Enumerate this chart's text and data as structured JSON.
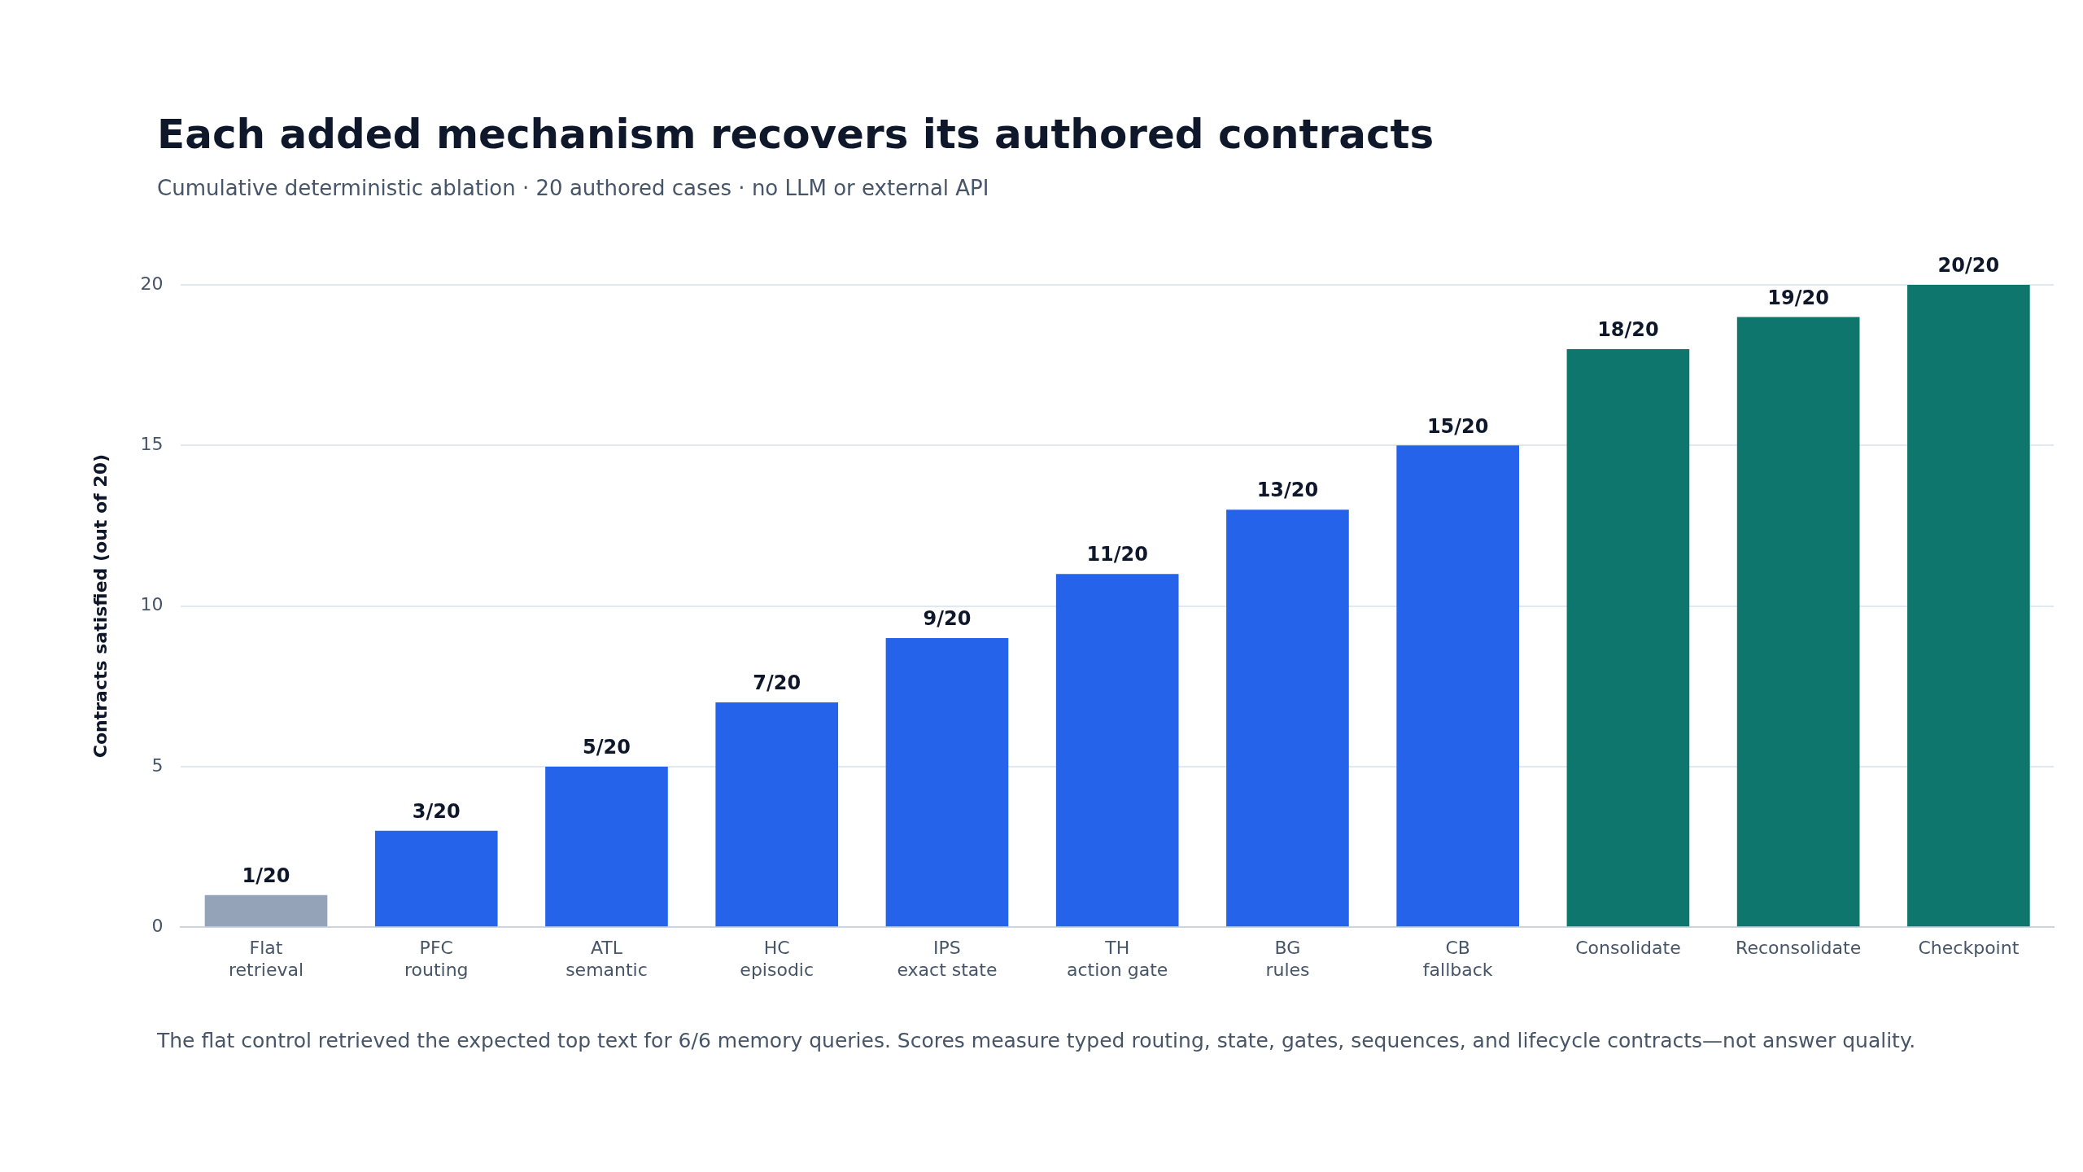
{
  "chart_data": {
    "type": "bar",
    "title": "Each added mechanism recovers its authored contracts",
    "subtitle": "Cumulative deterministic ablation · 20 authored cases · no LLM or external API",
    "ylabel": "Contracts satisfied (out of 20)",
    "categories": [
      "Flat\nretrieval",
      "PFC\nrouting",
      "ATL\nsemantic",
      "HC\nepisodic",
      "IPS\nexact state",
      "TH\naction gate",
      "BG\nrules",
      "CB\nfallback",
      "Consolidate",
      "Reconsolidate",
      "Checkpoint"
    ],
    "values": [
      1,
      3,
      5,
      7,
      9,
      11,
      13,
      15,
      18,
      19,
      20
    ],
    "colors": [
      "#94a3b8",
      "#2563eb",
      "#2563eb",
      "#2563eb",
      "#2563eb",
      "#2563eb",
      "#2563eb",
      "#2563eb",
      "#0f766e",
      "#0f766e",
      "#0f766e"
    ],
    "value_labels": [
      "1/20",
      "3/20",
      "5/20",
      "7/20",
      "9/20",
      "11/20",
      "13/20",
      "15/20",
      "18/20",
      "19/20",
      "20/20"
    ],
    "ylim": [
      0,
      20
    ],
    "yticks": [
      0,
      5,
      10,
      15,
      20
    ],
    "grid": "y",
    "legend": false,
    "annotations": [
      "The flat control retrieved the expected top text for 6/6 memory queries. Scores measure typed routing, state, gates, sequences, and lifecycle contracts—not answer quality."
    ]
  }
}
